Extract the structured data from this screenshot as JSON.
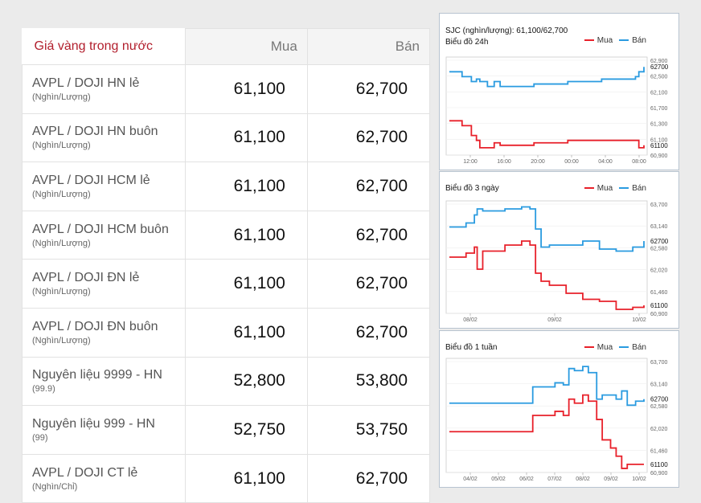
{
  "table": {
    "header": {
      "name": "Giá vàng trong nước",
      "buy": "Mua",
      "sell": "Bán"
    },
    "rows": [
      {
        "name": "AVPL / DOJI HN lẻ",
        "unit": "(Nghìn/Lượng)",
        "buy": "61,100",
        "sell": "62,700"
      },
      {
        "name": "AVPL / DOJI HN buôn",
        "unit": "(Nghìn/Lượng)",
        "buy": "61,100",
        "sell": "62,700"
      },
      {
        "name": "AVPL / DOJI HCM lẻ",
        "unit": "(Nghìn/Lượng)",
        "buy": "61,100",
        "sell": "62,700"
      },
      {
        "name": "AVPL / DOJI HCM buôn",
        "unit": "(Nghìn/Lượng)",
        "buy": "61,100",
        "sell": "62,700"
      },
      {
        "name": "AVPL / DOJI ĐN lẻ",
        "unit": "(Nghìn/Lượng)",
        "buy": "61,100",
        "sell": "62,700"
      },
      {
        "name": "AVPL / DOJI ĐN buôn",
        "unit": "(Nghìn/Lượng)",
        "buy": "61,100",
        "sell": "62,700"
      },
      {
        "name": "Nguyên liệu 9999 - HN",
        "unit": "(99.9)",
        "buy": "52,800",
        "sell": "53,800"
      },
      {
        "name": "Nguyên liệu 999 - HN",
        "unit": "(99)",
        "buy": "52,750",
        "sell": "53,750"
      },
      {
        "name": "AVPL / DOJI CT lẻ",
        "unit": "(Nghìn/Chỉ)",
        "buy": "61,100",
        "sell": "62,700"
      }
    ]
  },
  "charts_header": {
    "sjc": "SJC (nghìn/lượng): 61,100/62,700",
    "buy_legend": "Mua",
    "sell_legend": "Bán"
  },
  "colors": {
    "buy": "#e8202a",
    "sell": "#2a9be0"
  },
  "chart_data": [
    {
      "type": "line",
      "title": "Biểu đồ 24h",
      "x_ticks": [
        "12:00",
        "16:00",
        "20:00",
        "00:00",
        "04:00",
        "08:00"
      ],
      "y_ticks": [
        "62,900",
        "62,500",
        "62,100",
        "61,700",
        "61,300",
        "61,100",
        "60,900"
      ],
      "ylim": [
        60900,
        62900
      ],
      "x": [
        0,
        0.8,
        1.5,
        2.1,
        2.6,
        3.2,
        3.6,
        4.5,
        5.3,
        6.0,
        10,
        14,
        18,
        22,
        22.4,
        23
      ],
      "series": [
        {
          "name": "Mua",
          "values": [
            61600,
            61600,
            61500,
            61500,
            61300,
            61200,
            61050,
            61050,
            61150,
            61100,
            61150,
            61200,
            61200,
            61200,
            61050,
            61100
          ]
        },
        {
          "name": "Bán",
          "values": [
            62600,
            62600,
            62500,
            62500,
            62400,
            62450,
            62400,
            62300,
            62400,
            62300,
            62350,
            62400,
            62450,
            62500,
            62600,
            62700
          ]
        }
      ],
      "last_labels": {
        "sell": "62700",
        "buy": "61100"
      }
    },
    {
      "type": "line",
      "title": "Biểu đồ 3 ngày",
      "x_ticks": [
        "08/02",
        "09/02",
        "10/02"
      ],
      "y_ticks": [
        "63,700",
        "63,140",
        "62,580",
        "62,020",
        "61,460",
        "60,900"
      ],
      "ylim": [
        60900,
        63700
      ],
      "x": [
        0,
        0.6,
        0.9,
        1.0,
        1.2,
        2.0,
        2.6,
        2.9,
        3.1,
        3.3,
        3.6,
        4.2,
        4.8,
        5.4,
        6.0,
        6.6,
        7.0
      ],
      "series": [
        {
          "name": "Mua",
          "values": [
            62300,
            62400,
            62550,
            62000,
            62450,
            62600,
            62700,
            62600,
            61900,
            61700,
            61600,
            61400,
            61250,
            61200,
            61000,
            61050,
            61100
          ]
        },
        {
          "name": "Bán",
          "values": [
            63050,
            63150,
            63350,
            63500,
            63450,
            63500,
            63550,
            63500,
            63000,
            62550,
            62600,
            62600,
            62700,
            62500,
            62450,
            62550,
            62700
          ]
        }
      ],
      "last_labels": {
        "sell": "62700",
        "buy": "61100"
      }
    },
    {
      "type": "line",
      "title": "Biểu đồ 1 tuần",
      "x_ticks": [
        "04/02",
        "05/02",
        "06/02",
        "07/02",
        "08/02",
        "09/02",
        "10/02"
      ],
      "y_ticks": [
        "63,700",
        "63,140",
        "62,580",
        "62,020",
        "61,460",
        "60,900"
      ],
      "ylim": [
        60900,
        63700
      ],
      "x": [
        0,
        1,
        2,
        2.7,
        3,
        3.2,
        3.8,
        4.1,
        4.3,
        4.5,
        4.8,
        5.0,
        5.3,
        5.5,
        5.8,
        6.0,
        6.2,
        6.4,
        6.7,
        7.0
      ],
      "series": [
        {
          "name": "Mua",
          "values": [
            61900,
            61900,
            61900,
            61900,
            62300,
            62300,
            62400,
            62300,
            62700,
            62600,
            62800,
            62650,
            62200,
            61700,
            61500,
            61300,
            61000,
            61100,
            61100,
            61100
          ]
        },
        {
          "name": "Bán",
          "values": [
            62600,
            62600,
            62600,
            62600,
            63000,
            63000,
            63100,
            63050,
            63450,
            63400,
            63500,
            63350,
            62700,
            62800,
            62800,
            62700,
            62900,
            62550,
            62650,
            62700
          ]
        }
      ],
      "last_labels": {
        "sell": "62700",
        "buy": "61100"
      }
    }
  ]
}
